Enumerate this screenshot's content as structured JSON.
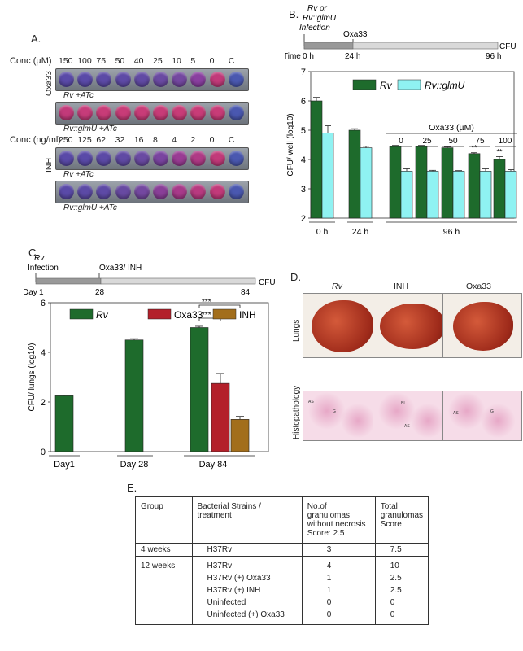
{
  "panel_labels": {
    "a": "A.",
    "b": "B.",
    "c": "C.",
    "d": "D.",
    "e": "E."
  },
  "panel_a": {
    "conc_um_label": "Conc (µM)",
    "conc_um_values": [
      "150",
      "100",
      "75",
      "50",
      "40",
      "25",
      "10",
      "5",
      "0",
      "C"
    ],
    "conc_ng_label": "Conc (ng/ml)",
    "conc_ng_values": [
      "250",
      "125",
      "62",
      "32",
      "16",
      "8",
      "4",
      "2",
      "0",
      "C"
    ],
    "oxa33_label": "Oxa33",
    "inh_label": "INH",
    "row1_label": "Rv +ATc",
    "row2_label": "Rv::glmU +ATc",
    "row3_label": "Rv +ATc",
    "row4_label": "Rv::glmU +ATc",
    "plates": [
      [
        "#5a4aa8",
        "#5a4aa8",
        "#5c4aa6",
        "#5e4aa6",
        "#614aa4",
        "#6a4aa2",
        "#7448a0",
        "#8a3fa0",
        "#c23a7a",
        "#4a58b0"
      ],
      [
        "#c23a7a",
        "#c63c7a",
        "#c83c78",
        "#c83c78",
        "#c83c78",
        "#c83c78",
        "#c83c78",
        "#c83c78",
        "#c83c78",
        "#4a58b0"
      ],
      [
        "#5a4aa8",
        "#5a4aa8",
        "#5c4aa6",
        "#604aa4",
        "#6a4aa2",
        "#7a44a0",
        "#9a3c94",
        "#b03a86",
        "#c23a7a",
        "#4a58b0"
      ],
      [
        "#5a4aa8",
        "#5c4aa6",
        "#5e4aa6",
        "#684aa2",
        "#7448a0",
        "#8a3f98",
        "#a83a8a",
        "#b83a80",
        "#c23a7a",
        "#4a58b0"
      ]
    ]
  },
  "panel_b": {
    "timeline": {
      "label_infection": "Rv or Rv::glmU Infection",
      "time_label": "Time",
      "t0": "0 h",
      "t24": "24 h",
      "t96": "96 h",
      "treatment": "Oxa33",
      "cfu": "CFU"
    },
    "chart_data": {
      "type": "bar",
      "ylabel": "CFU/ well (log10)",
      "ylim": [
        2,
        7
      ],
      "yticks": [
        2,
        3,
        4,
        5,
        6,
        7
      ],
      "legend": [
        "Rv",
        "Rv::glmU"
      ],
      "legend_position": "top-right",
      "groups": [
        {
          "label": "0 h",
          "rv": 6.0,
          "rv_err": 0.12,
          "glmu": 4.9,
          "glmu_err": 0.25,
          "dose": ""
        },
        {
          "label": "24 h",
          "rv": 5.0,
          "rv_err": 0.05,
          "glmu": 4.4,
          "glmu_err": 0.05,
          "dose": ""
        },
        {
          "label": "",
          "rv": 4.45,
          "rv_err": 0.03,
          "glmu": 3.6,
          "glmu_err": 0.08,
          "dose": "0"
        },
        {
          "label": "",
          "rv": 4.45,
          "rv_err": 0.03,
          "glmu": 3.6,
          "glmu_err": 0.03,
          "dose": "25"
        },
        {
          "label": "",
          "rv": 4.4,
          "rv_err": 0.03,
          "glmu": 3.6,
          "glmu_err": 0.02,
          "dose": "50"
        },
        {
          "label": "",
          "rv": 4.2,
          "rv_err": 0.03,
          "glmu": 3.6,
          "glmu_err": 0.08,
          "dose": "75",
          "sig": "**"
        },
        {
          "label": "",
          "rv": 4.0,
          "rv_err": 0.1,
          "glmu": 3.6,
          "glmu_err": 0.05,
          "dose": "100",
          "sig": "**"
        }
      ],
      "group_label_96": "96 h",
      "dose_header": "Oxa33 (µM)"
    }
  },
  "panel_c": {
    "timeline": {
      "infection": "Rv Infection",
      "treatment": "Oxa33/ INH",
      "day": "Day",
      "d1": "1",
      "d28": "28",
      "d84": "84",
      "cfu": "CFU"
    },
    "chart_data": {
      "type": "bar",
      "ylabel": "CFU/ lungs (log10)",
      "ylim": [
        0,
        6
      ],
      "yticks": [
        0,
        2,
        4,
        6
      ],
      "legend": [
        "Rv",
        "Oxa33",
        "INH"
      ],
      "legend_position": "top",
      "categories": [
        "Day1",
        "Day 28",
        "Day 84"
      ],
      "bars": [
        {
          "cat": "Day1",
          "series": "Rv",
          "value": 2.25,
          "err": 0.03
        },
        {
          "cat": "Day 28",
          "series": "Rv",
          "value": 4.5,
          "err": 0.05
        },
        {
          "cat": "Day 84",
          "series": "Rv",
          "value": 5.0,
          "err": 0.05
        },
        {
          "cat": "Day 84",
          "series": "Oxa33",
          "value": 2.75,
          "err": 0.4
        },
        {
          "cat": "Day 84",
          "series": "INH",
          "value": 1.3,
          "err": 0.12
        }
      ],
      "significance": [
        "***",
        "***"
      ]
    }
  },
  "panel_d": {
    "columns": [
      "Rv",
      "INH",
      "Oxa33"
    ],
    "row_lungs": "Lungs",
    "row_histo": "Histopathology",
    "histo_marks": [
      [
        "AS",
        "G"
      ],
      [
        "BL",
        "AS"
      ],
      [
        "AS",
        "G"
      ]
    ]
  },
  "panel_e": {
    "headers": [
      "Group",
      "Bacterial Strains / treatment",
      "No.of granulomas without necrosis Score: 2.5",
      "Total granulomas Score"
    ],
    "rows": [
      {
        "group": "4 weeks",
        "entries": [
          [
            "H37Rv",
            "3",
            "7.5"
          ]
        ]
      },
      {
        "group": "12 weeks",
        "entries": [
          [
            "H37Rv",
            "4",
            "10"
          ],
          [
            "H37Rv (+) Oxa33",
            "1",
            "2.5"
          ],
          [
            "H37Rv (+) INH",
            "1",
            "2.5"
          ],
          [
            "Uninfected",
            "0",
            "0"
          ],
          [
            "Uninfected (+) Oxa33",
            "0",
            "0"
          ]
        ]
      }
    ]
  },
  "colors": {
    "rv": "#1e6b2c",
    "glmu": "#8ff2f2",
    "oxa33": "#b3202a",
    "inh": "#a26e1c"
  }
}
